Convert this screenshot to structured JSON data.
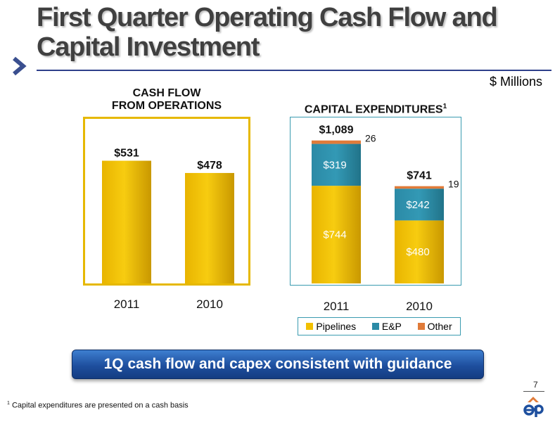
{
  "title": "First Quarter Operating Cash Flow and Capital Investment",
  "units": "$ Millions",
  "colors": {
    "pipelines": "#f2c000",
    "ep": "#2b8aa6",
    "other": "#e07b39",
    "frame_left": "#e6b800",
    "frame_right": "#3a9bb0",
    "title_rule": "#2e3f8a",
    "banner": "#1e4f9e"
  },
  "panels": {
    "cash_flow_title_line1": "CASH FLOW",
    "cash_flow_title_line2": "FROM OPERATIONS",
    "capex_title": "CAPITAL EXPENDITURES",
    "capex_title_sup": "1"
  },
  "chart_data": [
    {
      "type": "bar",
      "title": "CASH FLOW FROM OPERATIONS",
      "categories": [
        "2011",
        "2010"
      ],
      "values": [
        531,
        478
      ],
      "value_labels": [
        "$531",
        "$478"
      ],
      "ylim": [
        0,
        700
      ],
      "grid": false
    },
    {
      "type": "bar",
      "stacked": true,
      "title": "CAPITAL EXPENDITURES",
      "categories": [
        "2011",
        "2010"
      ],
      "series": [
        {
          "name": "Pipelines",
          "values": [
            744,
            480
          ],
          "labels": [
            "$744",
            "$480"
          ]
        },
        {
          "name": "E&P",
          "values": [
            319,
            242
          ],
          "labels": [
            "$319",
            "$242"
          ]
        },
        {
          "name": "Other",
          "values": [
            26,
            19
          ],
          "labels": [
            "26",
            "19"
          ]
        }
      ],
      "totals": [
        1089,
        741
      ],
      "total_labels": [
        "$1,089",
        "$741"
      ],
      "ylim": [
        0,
        1200
      ],
      "legend": "bottom",
      "grid": false
    }
  ],
  "legend": {
    "items": [
      {
        "label": "Pipelines",
        "color": "#f2c000"
      },
      {
        "label": "E&P",
        "color": "#2b8aa6"
      },
      {
        "label": "Other",
        "color": "#e07b39"
      }
    ]
  },
  "banner": "1Q cash flow and capex consistent with guidance",
  "page_number": "7",
  "footnote": {
    "marker": "1",
    "text": "Capital expenditures are presented on a cash basis"
  },
  "logo": "ep"
}
